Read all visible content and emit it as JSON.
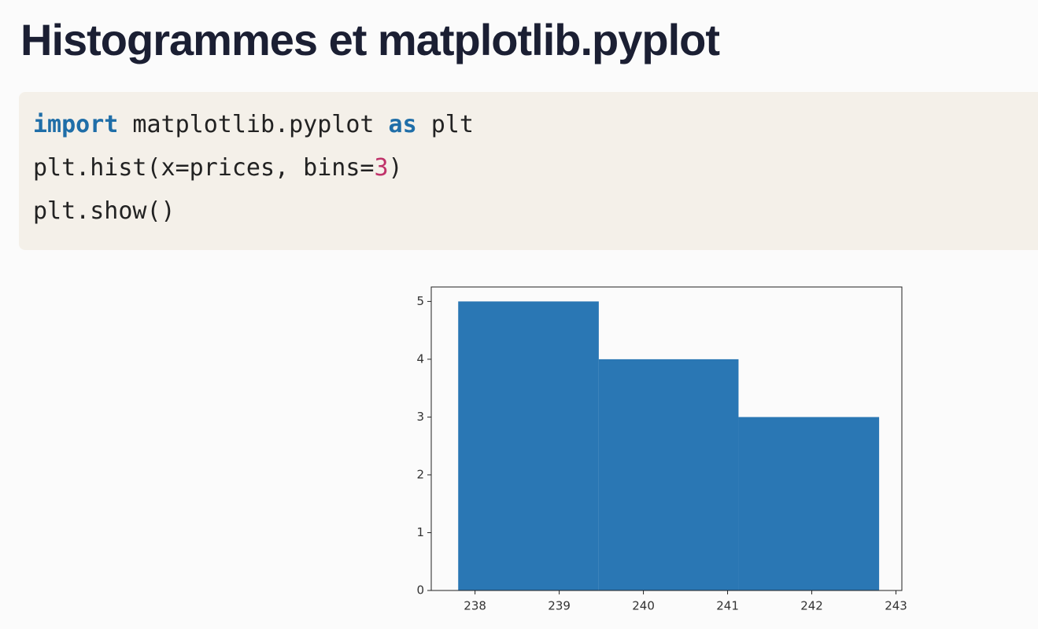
{
  "header": {
    "title": "Histogrammes et matplotlib.pyplot"
  },
  "code": {
    "lines": [
      [
        {
          "text": "import",
          "style": "keyword"
        },
        {
          "text": " matplotlib.pyplot ",
          "style": "plain"
        },
        {
          "text": "as",
          "style": "keyword"
        },
        {
          "text": " plt",
          "style": "plain"
        }
      ],
      [
        {
          "text": "plt.hist(x=prices, bins=",
          "style": "plain"
        },
        {
          "text": "3",
          "style": "number"
        },
        {
          "text": ")",
          "style": "plain"
        }
      ],
      [
        {
          "text": "plt.show()",
          "style": "plain"
        }
      ]
    ]
  },
  "chart_data": {
    "type": "histogram",
    "bins": [
      237.8,
      239.47,
      241.13,
      242.8
    ],
    "counts": [
      5,
      4,
      3
    ],
    "color": "#2a77b4",
    "xlim": [
      237.48,
      243.07
    ],
    "xticks": [
      238,
      239,
      240,
      241,
      242,
      243
    ],
    "ylim": [
      0,
      5.25
    ],
    "yticks": [
      0,
      1,
      2,
      3,
      4,
      5
    ]
  }
}
